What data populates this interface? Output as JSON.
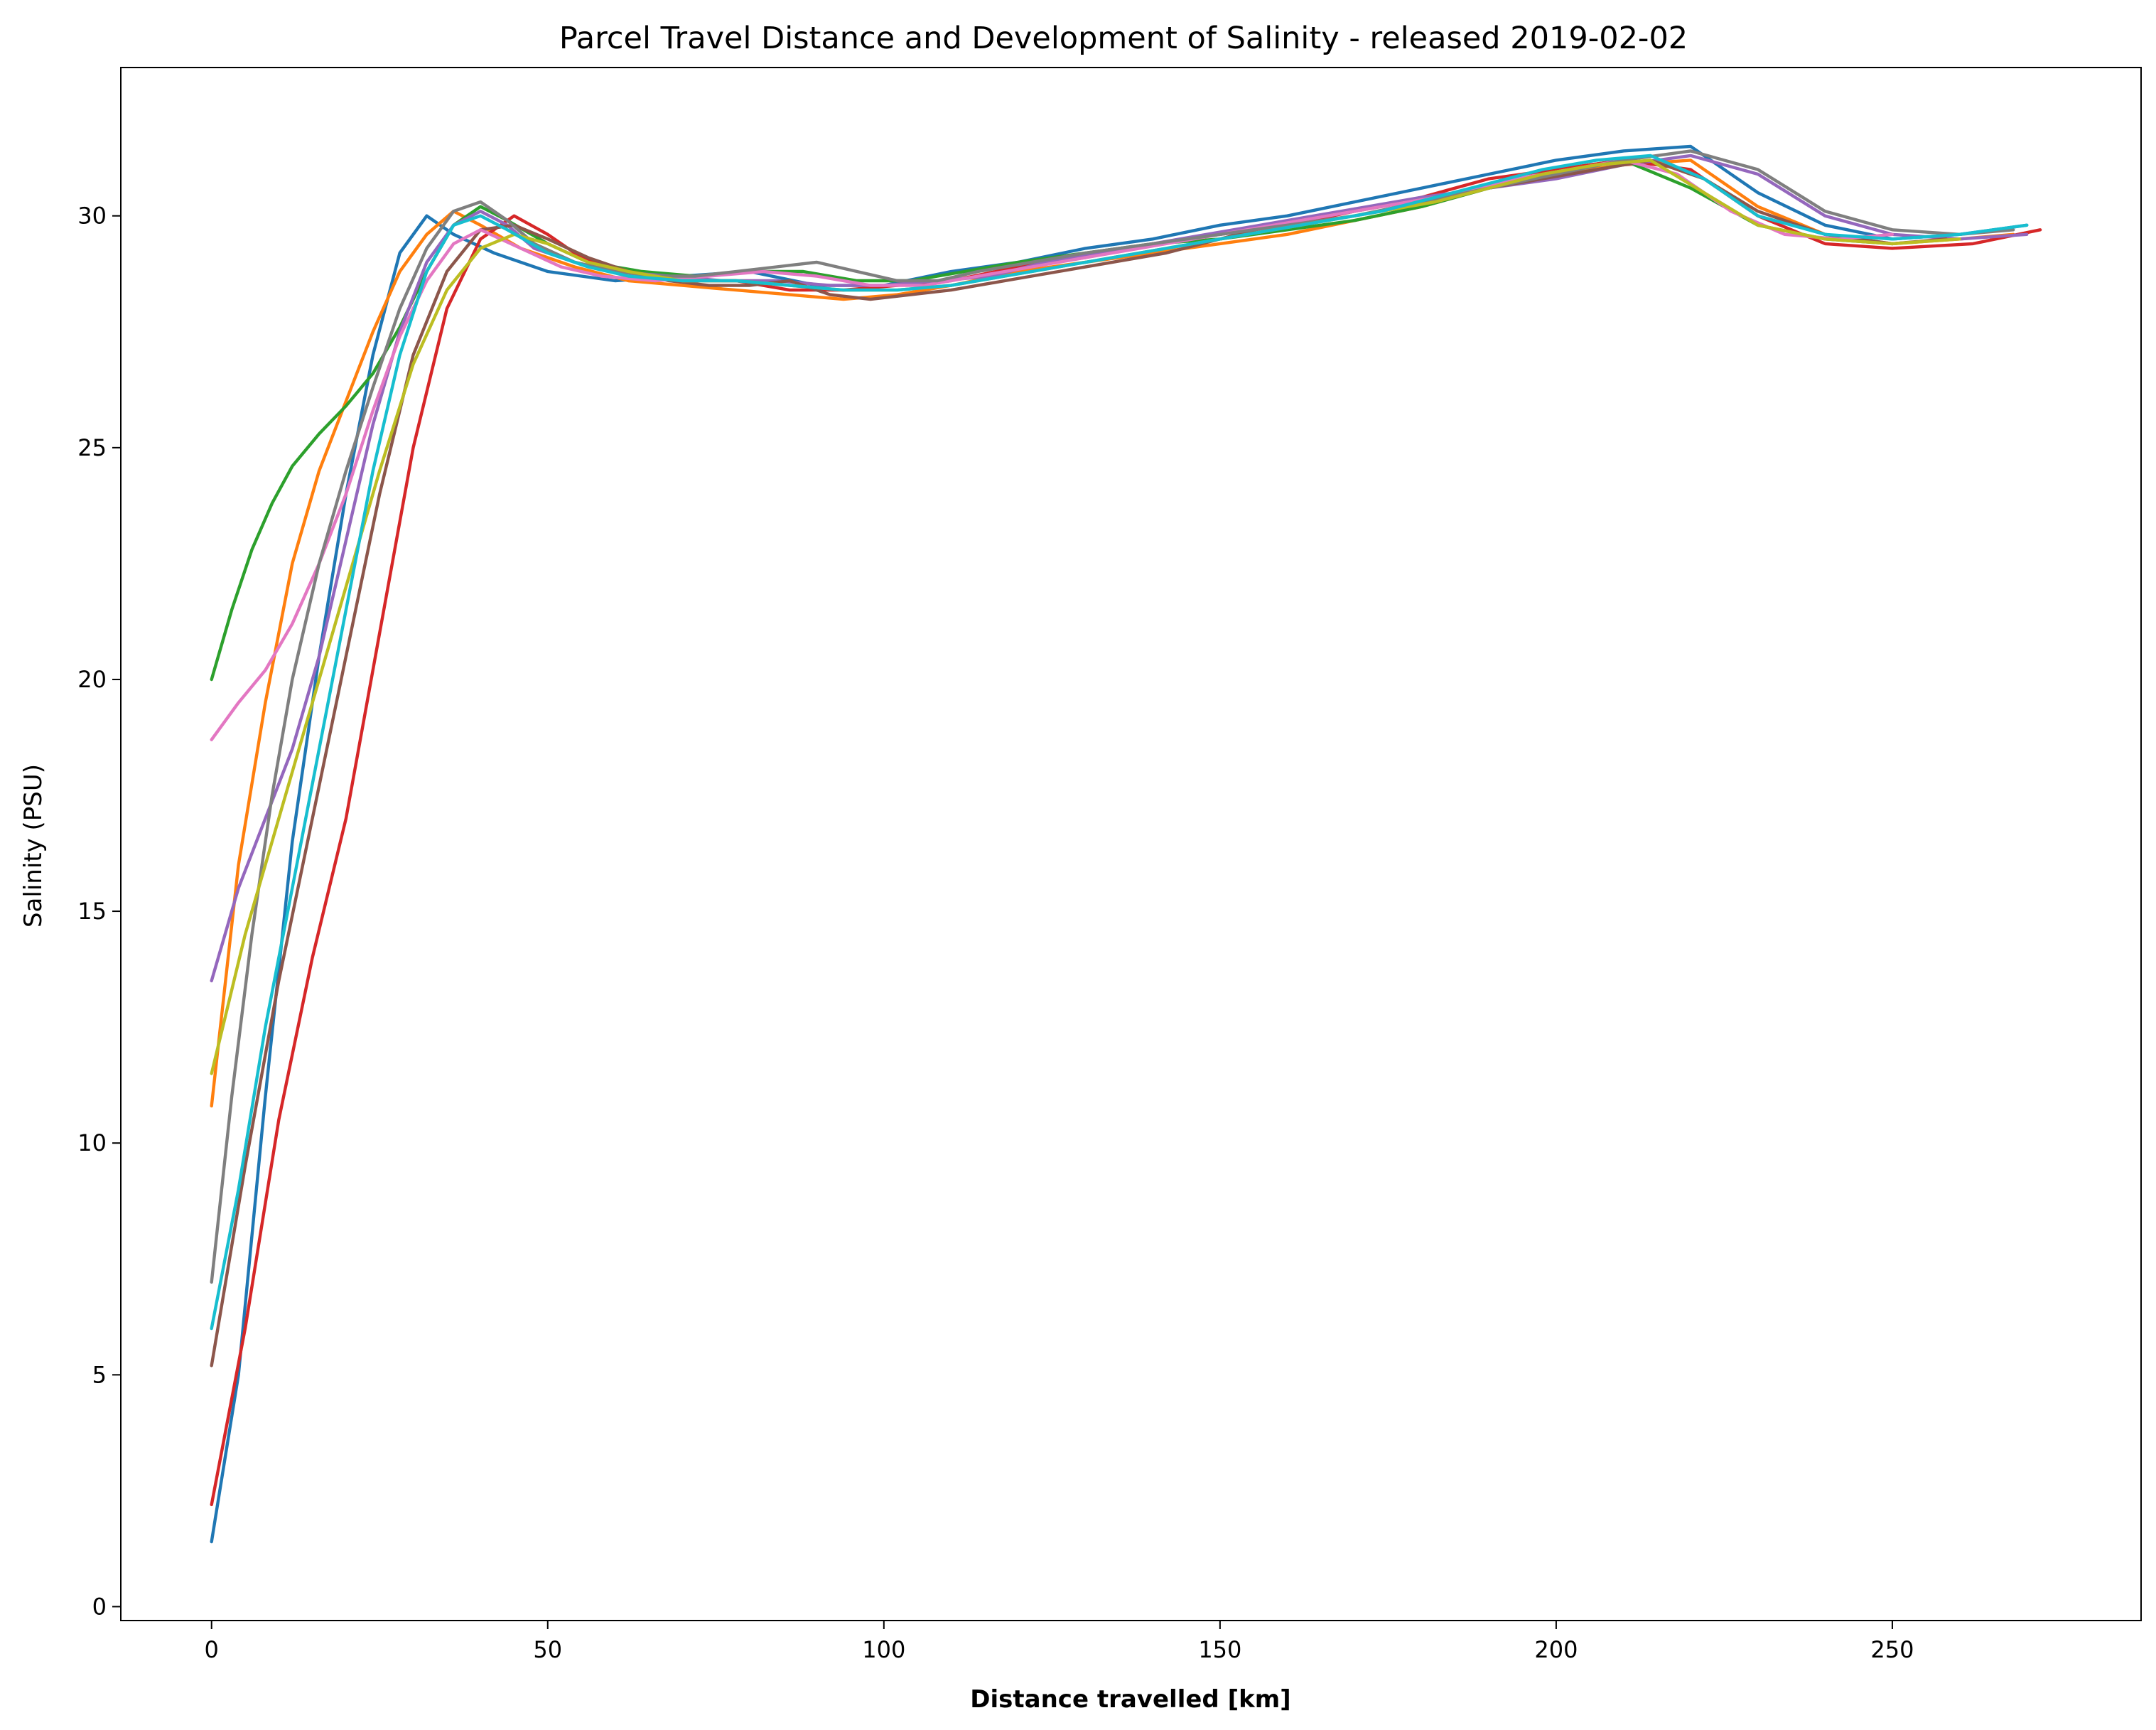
{
  "chart_data": {
    "type": "line",
    "title": "Parcel Travel Distance and Development of Salinity - released 2019-02-02",
    "xlabel": "Distance travelled [km]",
    "ylabel": "Salinity (PSU)",
    "xlim": [
      -13.5,
      287
    ],
    "ylim": [
      -0.3,
      33.2
    ],
    "xticks": [
      0,
      50,
      100,
      150,
      200,
      250
    ],
    "yticks": [
      0,
      5,
      10,
      15,
      20,
      25,
      30
    ],
    "grid": false,
    "legend": "none",
    "palette": [
      "#1f77b4",
      "#ff7f0e",
      "#2ca02c",
      "#d62728",
      "#9467bd",
      "#8c564b",
      "#e377c2",
      "#7f7f7f",
      "#bcbd22",
      "#17becf"
    ],
    "series": [
      {
        "x": [
          0,
          4,
          8,
          12,
          16,
          20,
          24,
          28,
          32,
          36,
          42,
          50,
          60,
          70,
          80,
          90,
          100,
          110,
          120,
          130,
          140,
          150,
          160,
          170,
          180,
          190,
          200,
          210,
          220,
          230,
          240,
          250,
          260,
          270
        ],
        "values": [
          1.4,
          5.0,
          11.0,
          16.5,
          20.5,
          24.0,
          27.0,
          29.2,
          30.0,
          29.6,
          29.2,
          28.8,
          28.6,
          28.7,
          28.8,
          28.5,
          28.5,
          28.8,
          29.0,
          29.3,
          29.5,
          29.8,
          30.0,
          30.3,
          30.6,
          30.9,
          31.2,
          31.4,
          31.5,
          30.5,
          29.8,
          29.5,
          29.6,
          29.8
        ]
      },
      {
        "x": [
          0,
          4,
          8,
          12,
          16,
          20,
          24,
          28,
          32,
          36,
          40,
          46,
          54,
          62,
          70,
          78,
          86,
          94,
          102,
          110,
          120,
          130,
          140,
          150,
          160,
          170,
          180,
          190,
          200,
          210,
          220,
          230,
          240,
          250,
          260,
          268
        ],
        "values": [
          10.8,
          16.0,
          19.5,
          22.5,
          24.5,
          26.0,
          27.5,
          28.8,
          29.6,
          30.1,
          29.8,
          29.3,
          28.9,
          28.6,
          28.5,
          28.4,
          28.3,
          28.2,
          28.3,
          28.5,
          28.8,
          29.0,
          29.2,
          29.4,
          29.6,
          29.9,
          30.2,
          30.6,
          30.9,
          31.1,
          31.2,
          30.2,
          29.6,
          29.4,
          29.5,
          29.6
        ]
      },
      {
        "x": [
          0,
          3,
          6,
          9,
          12,
          16,
          20,
          24,
          28,
          32,
          36,
          40,
          44,
          50,
          56,
          64,
          72,
          80,
          88,
          96,
          104,
          112,
          120,
          130,
          140,
          150,
          160,
          170,
          180,
          190,
          200,
          210,
          220,
          230,
          240,
          250
        ],
        "values": [
          20.0,
          21.5,
          22.8,
          23.8,
          24.6,
          25.3,
          25.9,
          26.6,
          27.6,
          28.8,
          29.8,
          30.2,
          29.9,
          29.4,
          29.0,
          28.8,
          28.7,
          28.8,
          28.8,
          28.6,
          28.6,
          28.8,
          29.0,
          29.2,
          29.4,
          29.5,
          29.7,
          29.9,
          30.2,
          30.6,
          31.0,
          31.2,
          30.6,
          29.8,
          29.5,
          29.4
        ]
      },
      {
        "x": [
          0,
          5,
          10,
          15,
          20,
          25,
          30,
          35,
          40,
          45,
          50,
          55,
          62,
          70,
          78,
          86,
          94,
          102,
          110,
          120,
          130,
          140,
          150,
          160,
          170,
          180,
          190,
          200,
          210,
          220,
          230,
          240,
          250,
          262,
          272
        ],
        "values": [
          2.2,
          6.0,
          10.5,
          14.0,
          17.0,
          21.0,
          25.0,
          28.0,
          29.5,
          30.0,
          29.6,
          29.1,
          28.8,
          28.6,
          28.6,
          28.4,
          28.4,
          28.5,
          28.6,
          28.9,
          29.1,
          29.4,
          29.6,
          29.8,
          30.1,
          30.4,
          30.8,
          31.0,
          31.2,
          31.0,
          30.0,
          29.4,
          29.3,
          29.4,
          29.7
        ]
      },
      {
        "x": [
          0,
          4,
          8,
          12,
          16,
          20,
          24,
          28,
          32,
          36,
          40,
          44,
          48,
          54,
          60,
          68,
          76,
          84,
          92,
          100,
          108,
          116,
          124,
          132,
          140,
          148,
          156,
          164,
          172,
          180,
          190,
          200,
          210,
          220,
          230,
          240,
          250,
          260,
          270
        ],
        "values": [
          13.5,
          15.5,
          17.0,
          18.5,
          20.5,
          23.0,
          25.5,
          27.5,
          29.0,
          29.8,
          30.1,
          29.8,
          29.3,
          29.0,
          28.8,
          28.7,
          28.6,
          28.6,
          28.5,
          28.5,
          28.6,
          28.7,
          29.0,
          29.2,
          29.4,
          29.6,
          29.8,
          30.0,
          30.2,
          30.4,
          30.6,
          30.8,
          31.1,
          31.3,
          30.9,
          30.0,
          29.6,
          29.5,
          29.6
        ]
      },
      {
        "x": [
          0,
          5,
          10,
          15,
          20,
          25,
          30,
          35,
          40,
          45,
          50,
          56,
          62,
          68,
          74,
          80,
          86,
          92,
          98,
          104,
          110,
          118,
          126,
          134,
          142,
          150,
          158,
          166,
          174,
          182,
          190,
          198,
          206,
          214,
          222,
          230,
          240,
          250,
          258
        ],
        "values": [
          5.2,
          9.5,
          13.5,
          17.0,
          20.5,
          24.0,
          27.0,
          28.8,
          29.7,
          29.8,
          29.5,
          29.1,
          28.8,
          28.6,
          28.5,
          28.5,
          28.6,
          28.3,
          28.2,
          28.3,
          28.4,
          28.6,
          28.8,
          29.0,
          29.2,
          29.5,
          29.8,
          30.0,
          30.2,
          30.4,
          30.6,
          30.8,
          31.0,
          31.2,
          30.8,
          30.1,
          29.6,
          29.4,
          29.5
        ]
      },
      {
        "x": [
          0,
          4,
          8,
          12,
          16,
          20,
          24,
          28,
          32,
          36,
          40,
          46,
          52,
          58,
          66,
          74,
          82,
          90,
          98,
          106,
          114,
          122,
          130,
          138,
          146,
          154,
          162,
          170,
          178,
          186,
          194,
          202,
          210,
          218,
          226,
          234,
          242,
          250
        ],
        "values": [
          18.7,
          19.5,
          20.2,
          21.2,
          22.5,
          24.0,
          25.8,
          27.4,
          28.6,
          29.4,
          29.7,
          29.3,
          28.9,
          28.7,
          28.6,
          28.7,
          28.8,
          28.7,
          28.5,
          28.5,
          28.7,
          28.9,
          29.1,
          29.3,
          29.5,
          29.7,
          29.9,
          30.1,
          30.3,
          30.5,
          30.8,
          31.0,
          31.2,
          30.9,
          30.1,
          29.6,
          29.5,
          29.6
        ]
      },
      {
        "x": [
          0,
          3,
          6,
          9,
          12,
          16,
          20,
          24,
          28,
          32,
          36,
          40,
          44,
          48,
          54,
          60,
          66,
          72,
          78,
          84,
          90,
          96,
          102,
          108,
          114,
          122,
          130,
          140,
          150,
          160,
          170,
          180,
          190,
          200,
          210,
          220,
          230,
          240,
          250,
          260,
          268
        ],
        "values": [
          7.0,
          11.0,
          14.5,
          17.5,
          20.0,
          22.5,
          24.5,
          26.3,
          28.0,
          29.3,
          30.1,
          30.3,
          29.9,
          29.4,
          29.0,
          28.8,
          28.7,
          28.7,
          28.8,
          28.9,
          29.0,
          28.8,
          28.6,
          28.6,
          28.8,
          29.0,
          29.2,
          29.4,
          29.6,
          29.8,
          30.0,
          30.3,
          30.6,
          30.9,
          31.2,
          31.4,
          31.0,
          30.1,
          29.7,
          29.6,
          29.7
        ]
      },
      {
        "x": [
          0,
          5,
          10,
          15,
          20,
          25,
          30,
          35,
          40,
          45,
          50,
          56,
          62,
          70,
          78,
          86,
          94,
          102,
          110,
          118,
          126,
          134,
          142,
          150,
          158,
          166,
          174,
          182,
          190,
          198,
          206,
          214,
          222,
          230,
          240,
          250,
          260
        ],
        "values": [
          11.5,
          14.5,
          17.0,
          19.5,
          22.0,
          24.5,
          26.8,
          28.4,
          29.3,
          29.6,
          29.4,
          29.0,
          28.8,
          28.6,
          28.6,
          28.5,
          28.4,
          28.4,
          28.5,
          28.7,
          28.9,
          29.1,
          29.3,
          29.5,
          29.7,
          29.9,
          30.1,
          30.3,
          30.6,
          30.9,
          31.1,
          31.2,
          30.5,
          29.8,
          29.5,
          29.4,
          29.5
        ]
      },
      {
        "x": [
          0,
          4,
          8,
          12,
          16,
          20,
          24,
          28,
          32,
          36,
          40,
          44,
          50,
          56,
          62,
          70,
          78,
          86,
          94,
          102,
          110,
          118,
          126,
          134,
          142,
          150,
          158,
          166,
          174,
          182,
          190,
          198,
          206,
          214,
          222,
          230,
          240,
          250,
          260,
          270
        ],
        "values": [
          6.0,
          9.0,
          12.5,
          15.5,
          18.5,
          21.5,
          24.5,
          27.0,
          28.8,
          29.8,
          30.0,
          29.7,
          29.2,
          28.9,
          28.7,
          28.6,
          28.6,
          28.5,
          28.4,
          28.4,
          28.5,
          28.7,
          28.9,
          29.1,
          29.3,
          29.5,
          29.7,
          29.9,
          30.1,
          30.4,
          30.7,
          31.0,
          31.2,
          31.3,
          30.8,
          30.0,
          29.6,
          29.5,
          29.6,
          29.8
        ]
      }
    ]
  }
}
